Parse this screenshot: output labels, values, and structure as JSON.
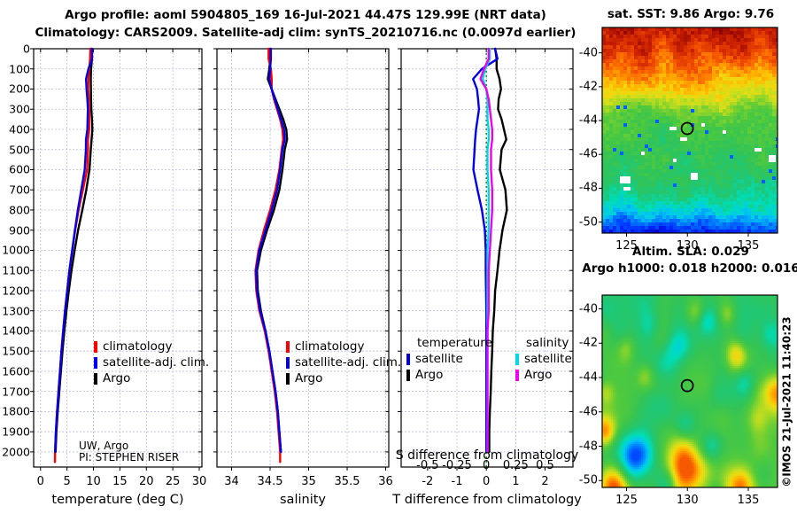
{
  "titles": {
    "line1": "Argo profile: aoml 5904805_169 16-Jul-2021 44.47S 129.99E (NRT data)",
    "line2": "Climatology: CARS2009. Satellite-adj clim: synTS_20210716.nc (0.0097d earlier)",
    "sst_map": "sat. SST: 9.86 Argo: 9.76",
    "sla_line1": "Altim. SLA: 0.029",
    "sla_line2": "Argo h1000: 0.018 h2000: 0.016",
    "watermark": "©IMOS 21-Jul-2021 11:40:23"
  },
  "credits": {
    "line1": "UW, Argo",
    "line2": "PI: STEPHEN RISER"
  },
  "legends": {
    "profile": [
      {
        "label": "climatology",
        "color": "#ff0000"
      },
      {
        "label": "satellite-adj. clim.",
        "color": "#0000ee"
      },
      {
        "label": "Argo",
        "color": "#000000"
      }
    ],
    "diff_temperature": {
      "header": "temperature",
      "items": [
        {
          "label": "satellite",
          "color": "#0000ee"
        },
        {
          "label": "Argo",
          "color": "#000000"
        }
      ]
    },
    "diff_salinity": {
      "header": "salinity",
      "items": [
        {
          "label": "satellite",
          "color": "#00d8e8"
        },
        {
          "label": "Argo",
          "color": "#ee00ee"
        }
      ]
    }
  },
  "chart_data": [
    {
      "type": "line",
      "panel": "temperature profile",
      "xlabel": "temperature (deg C)",
      "xlim": [
        -1.3,
        30.5
      ],
      "xticks": [
        0,
        5,
        10,
        15,
        20,
        25,
        30
      ],
      "ylim": [
        0,
        2075
      ],
      "yticks": [
        0,
        100,
        200,
        300,
        400,
        500,
        600,
        700,
        800,
        900,
        1000,
        1100,
        1200,
        1300,
        1400,
        1500,
        1600,
        1700,
        1800,
        1900,
        2000
      ],
      "depths": [
        0,
        50,
        100,
        150,
        200,
        250,
        300,
        350,
        400,
        450,
        500,
        600,
        700,
        800,
        900,
        1000,
        1100,
        1200,
        1300,
        1400,
        1500,
        1600,
        1700,
        1800,
        1900,
        2000
      ],
      "series": [
        {
          "name": "Argo",
          "color": "#000000",
          "values": [
            9.72,
            9.72,
            9.55,
            9.5,
            9.52,
            9.55,
            9.6,
            9.72,
            9.8,
            9.65,
            9.5,
            9.25,
            8.65,
            7.9,
            7.1,
            6.45,
            5.85,
            5.35,
            4.9,
            4.5,
            4.15,
            3.85,
            3.55,
            3.25,
            3.0,
            2.85
          ]
        },
        {
          "name": "climatology",
          "color": "#ff0000",
          "values": [
            9.42,
            9.37,
            9.2,
            9.05,
            9.02,
            9.13,
            9.2,
            9.2,
            9.2,
            8.97,
            8.98,
            8.79,
            8.0,
            7.2,
            6.55,
            6.0,
            5.47,
            5.05,
            4.63,
            4.28,
            3.95,
            3.68,
            3.4,
            3.13,
            2.9,
            2.75
          ],
          "extra": [
            [
              2050,
              2.72
            ]
          ]
        },
        {
          "name": "satellite-adj. clim.",
          "color": "#0000ee",
          "values": [
            9.72,
            9.75,
            9.05,
            8.6,
            8.7,
            8.85,
            8.95,
            8.9,
            8.85,
            8.59,
            8.58,
            8.35,
            7.7,
            7.05,
            6.5,
            5.98,
            5.45,
            5.04,
            4.63,
            4.28,
            3.95,
            3.68,
            3.4,
            3.13,
            2.9,
            2.75
          ]
        }
      ]
    },
    {
      "type": "line",
      "panel": "salinity profile",
      "xlabel": "salinity",
      "xlim": [
        33.81,
        36.04
      ],
      "xticks": [
        34,
        34.5,
        35,
        35.5,
        36
      ],
      "ylim": [
        0,
        2075
      ],
      "yticks": [
        0,
        100,
        200,
        300,
        400,
        500,
        600,
        700,
        800,
        900,
        1000,
        1100,
        1200,
        1300,
        1400,
        1500,
        1600,
        1700,
        1800,
        1900,
        2000
      ],
      "depths": [
        0,
        50,
        100,
        150,
        200,
        250,
        300,
        350,
        400,
        450,
        500,
        600,
        700,
        800,
        900,
        1000,
        1100,
        1200,
        1300,
        1400,
        1500,
        1600,
        1700,
        1800,
        1900,
        2000
      ],
      "series": [
        {
          "name": "Argo",
          "color": "#000000",
          "values": [
            34.5,
            34.5,
            34.49,
            34.47,
            34.52,
            34.57,
            34.62,
            34.67,
            34.71,
            34.72,
            34.69,
            34.66,
            34.62,
            34.55,
            34.46,
            34.38,
            34.33,
            34.34,
            34.38,
            34.44,
            34.49,
            34.53,
            34.57,
            34.6,
            34.62,
            34.64
          ]
        },
        {
          "name": "climatology",
          "color": "#ff0000",
          "values": [
            34.48,
            34.48,
            34.51,
            34.52,
            34.52,
            34.55,
            34.59,
            34.63,
            34.66,
            34.67,
            34.65,
            34.62,
            34.57,
            34.5,
            34.42,
            34.35,
            34.31,
            34.32,
            34.36,
            34.43,
            34.48,
            34.52,
            34.56,
            34.59,
            34.61,
            34.63
          ],
          "extra": [
            [
              2050,
              34.63
            ]
          ]
        },
        {
          "name": "satellite-adj. clim.",
          "color": "#0000ee",
          "values": [
            34.51,
            34.51,
            34.5,
            34.49,
            34.52,
            34.56,
            34.6,
            34.64,
            34.68,
            34.69,
            34.66,
            34.63,
            34.59,
            34.52,
            34.44,
            34.36,
            34.32,
            34.33,
            34.37,
            34.44,
            34.49,
            34.53,
            34.57,
            34.6,
            34.62,
            34.64
          ]
        }
      ]
    },
    {
      "type": "line",
      "panel": "difference from climatology",
      "xlabel": "T difference from climatology",
      "xlim": [
        -2.9,
        2.95
      ],
      "xticks": [
        -2,
        -1,
        0,
        1,
        2
      ],
      "ylim": [
        0,
        2075
      ],
      "yticks": [
        0,
        100,
        200,
        300,
        400,
        500,
        600,
        700,
        800,
        900,
        1000,
        1100,
        1200,
        1300,
        1400,
        1500,
        1600,
        1700,
        1800,
        1900,
        2000
      ],
      "zero_line": {
        "color": "#008000"
      },
      "s_axis": {
        "label": "S difference from climatology",
        "ticks": [
          -0.5,
          -0.25,
          0,
          0.25,
          0.5
        ],
        "scale": 4
      },
      "depths": [
        0,
        50,
        100,
        150,
        200,
        250,
        300,
        350,
        400,
        450,
        500,
        600,
        700,
        800,
        900,
        1000,
        1100,
        1200,
        1300,
        1400,
        1500,
        1600,
        1700,
        1800,
        1900,
        2000
      ],
      "series": [
        {
          "name": "Argo T",
          "color": "#000000",
          "axis": "T",
          "values": [
            0.3,
            0.35,
            0.35,
            0.45,
            0.5,
            0.42,
            0.4,
            0.52,
            0.6,
            0.68,
            0.52,
            0.46,
            0.65,
            0.7,
            0.55,
            0.45,
            0.38,
            0.3,
            0.27,
            0.22,
            0.2,
            0.17,
            0.15,
            0.12,
            0.1,
            0.1
          ]
        },
        {
          "name": "satellite T",
          "color": "#0000ee",
          "axis": "T",
          "values": [
            0.3,
            0.38,
            -0.15,
            -0.45,
            -0.32,
            -0.28,
            -0.25,
            -0.3,
            -0.35,
            -0.38,
            -0.4,
            -0.44,
            -0.3,
            -0.15,
            -0.05,
            -0.02,
            -0.02,
            -0.01,
            0,
            0,
            0,
            0,
            0,
            0,
            0,
            0
          ]
        },
        {
          "name": "satellite S",
          "color": "#00d8e8",
          "axis": "S",
          "values": [
            0.03,
            0.03,
            -0.01,
            -0.03,
            0,
            0.01,
            0.01,
            0.01,
            0.02,
            0.02,
            0.01,
            0.01,
            0.02,
            0.02,
            0.02,
            0.01,
            0.01,
            0.01,
            0.01,
            0.01,
            0.01,
            0.01,
            0.01,
            0.01,
            0.01,
            0.01
          ]
        },
        {
          "name": "Argo S",
          "color": "#ee00ee",
          "axis": "S",
          "values": [
            0.02,
            0.02,
            -0.02,
            -0.05,
            0,
            0.02,
            0.03,
            0.04,
            0.05,
            0.05,
            0.04,
            0.04,
            0.05,
            0.05,
            0.04,
            0.03,
            0.02,
            0.02,
            0.02,
            0.01,
            0.01,
            0.01,
            0.01,
            0.01,
            0.01,
            0.01
          ]
        }
      ]
    },
    {
      "type": "heatmap",
      "panel": "sat SST map",
      "style": "pixelated",
      "lon_range": [
        123.0,
        137.4
      ],
      "lat_range": [
        -38.5,
        -50.65
      ],
      "xticks": [
        125,
        130,
        135
      ],
      "yticks": [
        -40,
        -42,
        -44,
        -46,
        -48,
        -50
      ],
      "marker": {
        "lon": 129.99,
        "lat": -44.47
      },
      "colormap": [
        [
          0,
          "#00007f"
        ],
        [
          0.06,
          "#0000c8"
        ],
        [
          0.12,
          "#0028ff"
        ],
        [
          0.2,
          "#0080ff"
        ],
        [
          0.27,
          "#00c8f0"
        ],
        [
          0.33,
          "#00ddb8"
        ],
        [
          0.4,
          "#1ec878"
        ],
        [
          0.47,
          "#34c455"
        ],
        [
          0.54,
          "#52ca3c"
        ],
        [
          0.6,
          "#8ed42a"
        ],
        [
          0.66,
          "#ccdf1c"
        ],
        [
          0.71,
          "#f2d80e"
        ],
        [
          0.76,
          "#ffb400"
        ],
        [
          0.81,
          "#ff8000"
        ],
        [
          0.86,
          "#f25000"
        ],
        [
          0.92,
          "#d02500"
        ],
        [
          1,
          "#8c0000"
        ]
      ],
      "lat_bands": [
        [
          -38.5,
          0.95
        ],
        [
          -39.5,
          0.9
        ],
        [
          -40.5,
          0.84
        ],
        [
          -41.5,
          0.78
        ],
        [
          -42.3,
          0.71
        ],
        [
          -43.0,
          0.63
        ],
        [
          -43.7,
          0.55
        ],
        [
          -44.5,
          0.49
        ],
        [
          -45.5,
          0.47
        ],
        [
          -46.5,
          0.46
        ],
        [
          -47.5,
          0.44
        ],
        [
          -48.3,
          0.4
        ],
        [
          -48.9,
          0.33
        ],
        [
          -49.5,
          0.25
        ],
        [
          -50.1,
          0.16
        ],
        [
          -50.65,
          0.1
        ]
      ],
      "white_patches": [
        [
          128.8,
          -44.5,
          2,
          1
        ],
        [
          129.5,
          -45.05,
          2,
          1
        ],
        [
          126.2,
          -45.9,
          1,
          1
        ],
        [
          124.7,
          -47.4,
          3,
          2
        ],
        [
          125.0,
          -48.0,
          2,
          1
        ],
        [
          130.4,
          -47.2,
          2,
          2
        ],
        [
          135.7,
          -45.7,
          2,
          1
        ],
        [
          136.8,
          -46.1,
          2,
          2
        ],
        [
          133.0,
          -44.7,
          1,
          1
        ],
        [
          131.2,
          -44.3,
          1,
          1
        ],
        [
          129.0,
          -46.3,
          1,
          1
        ]
      ]
    },
    {
      "type": "heatmap",
      "panel": "altimetric SLA map",
      "style": "smooth",
      "lon_range": [
        123.0,
        137.4
      ],
      "lat_range": [
        -39.2,
        -50.4
      ],
      "xticks": [
        125,
        130,
        135
      ],
      "yticks": [
        -40,
        -42,
        -44,
        -46,
        -48,
        -50
      ],
      "marker": {
        "lon": 129.99,
        "lat": -44.47
      },
      "base": 0.48,
      "colormap": [
        [
          0,
          "#00007f"
        ],
        [
          0.06,
          "#0000c8"
        ],
        [
          0.12,
          "#0028ff"
        ],
        [
          0.2,
          "#0080ff"
        ],
        [
          0.27,
          "#00c8f0"
        ],
        [
          0.33,
          "#00ddb8"
        ],
        [
          0.4,
          "#1ec878"
        ],
        [
          0.47,
          "#34c455"
        ],
        [
          0.54,
          "#52ca3c"
        ],
        [
          0.6,
          "#8ed42a"
        ],
        [
          0.66,
          "#ccdf1c"
        ],
        [
          0.71,
          "#f2d80e"
        ],
        [
          0.76,
          "#ffb400"
        ],
        [
          0.81,
          "#ff8000"
        ],
        [
          0.86,
          "#f25000"
        ],
        [
          0.92,
          "#d02500"
        ],
        [
          1,
          "#8c0000"
        ]
      ],
      "features": [
        [
          124.0,
          -50.3,
          1.3,
          0.4
        ],
        [
          129.9,
          -49.3,
          1.6,
          0.38
        ],
        [
          134.4,
          -50.4,
          1.2,
          0.36
        ],
        [
          137.4,
          -44.9,
          1.1,
          0.3
        ],
        [
          134.0,
          -42.6,
          0.9,
          0.22
        ],
        [
          123.2,
          -47.2,
          0.9,
          0.3
        ],
        [
          123.3,
          -44.9,
          0.7,
          0.15
        ],
        [
          126.5,
          -43.9,
          0.8,
          0.16
        ],
        [
          124.9,
          -42.2,
          0.8,
          0.14
        ],
        [
          130.7,
          -40.2,
          0.8,
          0.15
        ],
        [
          135.9,
          -46.4,
          0.9,
          0.2
        ],
        [
          133.3,
          -40.3,
          0.7,
          0.12
        ],
        [
          125.7,
          -48.7,
          1.4,
          -0.3
        ],
        [
          127.9,
          -45.6,
          1.2,
          -0.14
        ],
        [
          129.2,
          -42.4,
          1.1,
          -0.15
        ],
        [
          131.6,
          -40.7,
          0.9,
          -0.16
        ],
        [
          134.7,
          -44.2,
          0.9,
          -0.12
        ],
        [
          129.8,
          -46.8,
          0.9,
          -0.14
        ],
        [
          132.0,
          -48.0,
          0.8,
          -0.12
        ],
        [
          126.9,
          -41.0,
          0.9,
          -0.1
        ],
        [
          136.5,
          -41.5,
          0.8,
          -0.1
        ],
        [
          128.3,
          -50.2,
          0.9,
          -0.18
        ]
      ]
    }
  ]
}
